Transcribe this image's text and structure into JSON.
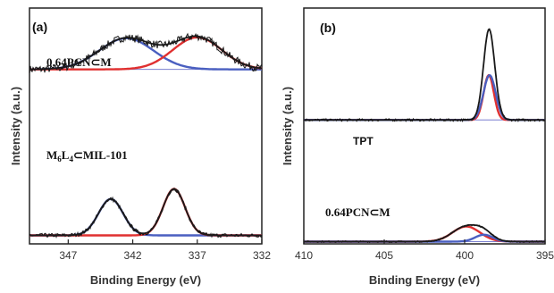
{
  "colors": {
    "experimental": "#111111",
    "fit": "#1a1a1a",
    "component_red": "#e03030",
    "component_blue": "#4a5fc0",
    "baseline": "#7a7fcf",
    "frame": "#222222"
  },
  "chart_data": [
    {
      "type": "line",
      "panel_label": "(a)",
      "xlabel": "Binding Energy (eV)",
      "ylabel": "Intensity (a.u.)",
      "xlim": [
        350,
        332
      ],
      "x_reversed": true,
      "x_ticks": [
        347,
        342,
        337,
        332
      ],
      "x_tick_labels": [
        "347",
        "342",
        "337",
        "332"
      ],
      "traces": [
        {
          "label": "0.64PCN⊂M",
          "label_html": "0.64PCN⊂M",
          "components": [
            {
              "color_role": "component_blue",
              "center": 342.5,
              "height": 0.36,
              "width": 2.1
            },
            {
              "color_role": "component_red",
              "center": 337.0,
              "height": 0.37,
              "width": 1.9
            }
          ],
          "baseline": 0.56,
          "noise": 0.045
        },
        {
          "label": "M6L4⊂MIL-101",
          "components": [
            {
              "color_role": "component_blue",
              "center": 343.7,
              "height": 0.36,
              "width": 0.95
            },
            {
              "color_role": "component_red",
              "center": 338.8,
              "height": 0.46,
              "width": 0.85
            }
          ],
          "baseline": 0.04,
          "noise": 0.02
        }
      ]
    },
    {
      "type": "line",
      "panel_label": "(b)",
      "xlabel": "Binding Energy (eV)",
      "ylabel": "Intensity (a.u.)",
      "xlim": [
        410,
        395
      ],
      "x_reversed": true,
      "x_ticks": [
        410,
        405,
        400,
        395
      ],
      "x_tick_labels": [
        "410",
        "405",
        "400",
        "395"
      ],
      "traces": [
        {
          "label": "TPT",
          "components": [
            {
              "color_role": "component_red",
              "center": 398.5,
              "height": 0.28,
              "width": 0.32
            },
            {
              "color_role": "component_blue",
              "center": 398.45,
              "height": 0.28,
              "width": 0.38
            }
          ],
          "fit_height": 0.57,
          "baseline": 0.3,
          "noise": 0.008
        },
        {
          "label": "0.64PCN⊂M",
          "components": [
            {
              "color_role": "component_red",
              "center": 399.9,
              "height": 0.22,
              "width": 0.85
            },
            {
              "color_role": "component_blue",
              "center": 398.8,
              "height": 0.1,
              "width": 0.55
            }
          ],
          "baseline": 0.02,
          "noise": 0.012
        }
      ]
    }
  ]
}
